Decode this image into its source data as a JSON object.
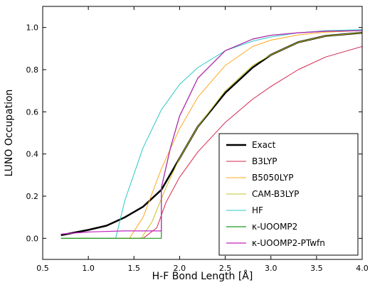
{
  "chart_data": {
    "type": "line",
    "title": "",
    "xlabel": "H-F Bond Length [Å]",
    "ylabel": "LUNO Occupation",
    "xlim": [
      0.5,
      4.0
    ],
    "ylim": [
      -0.1,
      1.1
    ],
    "xticks": [
      "0.5",
      "1.0",
      "1.5",
      "2.0",
      "2.5",
      "3.0",
      "3.5",
      "4.0"
    ],
    "yticks": [
      "0.0",
      "0.2",
      "0.4",
      "0.6",
      "0.8",
      "1.0"
    ],
    "grid": false,
    "legend_position": "lower-right",
    "series": [
      {
        "name": "Exact",
        "color": "#000000",
        "width": 2.5,
        "x": [
          0.7,
          1.0,
          1.2,
          1.4,
          1.6,
          1.8,
          2.0,
          2.2,
          2.5,
          2.8,
          3.0,
          3.3,
          3.6,
          4.0
        ],
        "y": [
          0.015,
          0.04,
          0.06,
          0.1,
          0.15,
          0.23,
          0.38,
          0.53,
          0.69,
          0.81,
          0.87,
          0.93,
          0.96,
          0.975
        ]
      },
      {
        "name": "B3LYP",
        "color": "#d6274f",
        "width": 1,
        "x": [
          0.7,
          1.6,
          1.75,
          1.85,
          2.0,
          2.2,
          2.5,
          2.8,
          3.0,
          3.3,
          3.6,
          4.0
        ],
        "y": [
          0.0,
          0.0,
          0.05,
          0.17,
          0.29,
          0.41,
          0.55,
          0.66,
          0.72,
          0.8,
          0.86,
          0.91
        ]
      },
      {
        "name": "B5050LYP",
        "color": "#ffa81f",
        "width": 1,
        "x": [
          0.7,
          1.45,
          1.6,
          1.8,
          2.0,
          2.2,
          2.5,
          2.8,
          3.0,
          3.3,
          3.6,
          4.0
        ],
        "y": [
          0.0,
          0.0,
          0.1,
          0.33,
          0.52,
          0.67,
          0.82,
          0.91,
          0.94,
          0.965,
          0.978,
          0.985
        ]
      },
      {
        "name": "CAM-B3LYP",
        "color": "#c2c22a",
        "width": 1,
        "x": [
          0.7,
          1.58,
          1.7,
          1.85,
          2.0,
          2.2,
          2.5,
          2.8,
          3.0,
          3.3,
          3.6,
          4.0
        ],
        "y": [
          0.0,
          0.0,
          0.08,
          0.24,
          0.38,
          0.53,
          0.7,
          0.82,
          0.87,
          0.93,
          0.96,
          0.975
        ]
      },
      {
        "name": "HF",
        "color": "#2ec7c7",
        "width": 1,
        "x": [
          0.7,
          1.3,
          1.4,
          1.6,
          1.8,
          2.0,
          2.2,
          2.5,
          2.8,
          3.0,
          3.3,
          3.6,
          4.0
        ],
        "y": [
          0.0,
          0.0,
          0.18,
          0.43,
          0.61,
          0.73,
          0.81,
          0.89,
          0.935,
          0.955,
          0.975,
          0.985,
          0.99
        ]
      },
      {
        "name": "κ-UOOMP2",
        "color": "#1f9b1f",
        "width": 1.2,
        "x": [
          0.7,
          1.8,
          1.8,
          1.9,
          2.0,
          2.2,
          2.5,
          2.8,
          3.0,
          3.3,
          3.6,
          4.0
        ],
        "y": [
          0.0,
          0.0,
          0.24,
          0.43,
          0.58,
          0.76,
          0.89,
          0.945,
          0.963,
          0.975,
          0.982,
          0.985
        ]
      },
      {
        "name": "κ-UOOMP2-PTwfn",
        "color": "#c026c0",
        "width": 1.2,
        "x": [
          0.7,
          1.0,
          1.4,
          1.8,
          1.8,
          1.9,
          2.0,
          2.2,
          2.5,
          2.8,
          3.0,
          3.3,
          3.6,
          4.0
        ],
        "y": [
          0.02,
          0.03,
          0.035,
          0.035,
          0.24,
          0.43,
          0.58,
          0.76,
          0.89,
          0.945,
          0.963,
          0.975,
          0.982,
          0.985
        ]
      }
    ]
  }
}
